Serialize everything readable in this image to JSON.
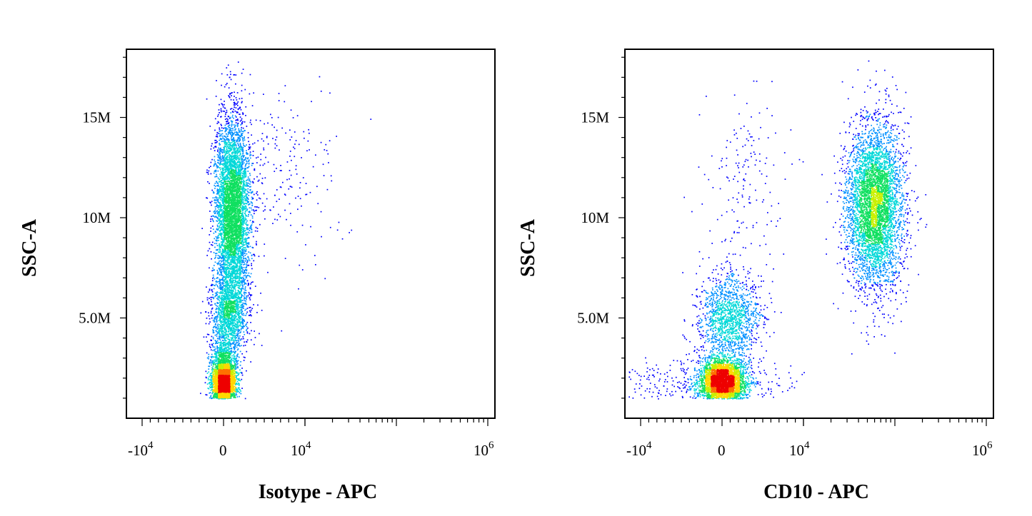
{
  "palette": [
    "#0000ff",
    "#0090ff",
    "#00d8d8",
    "#10e060",
    "#c8f000",
    "#ffd800",
    "#ff7000",
    "#ee0000"
  ],
  "chart_data": [
    {
      "type": "scatter",
      "subtype": "flow-cytometry-density-dot-plot",
      "xlabel": "Isotype - APC",
      "ylabel": "SSC-A",
      "x_scale": "biexponential",
      "x_ticks": [
        {
          "value": -10000,
          "base": "-10",
          "exp": "4"
        },
        {
          "value": 0,
          "base": "0",
          "exp": ""
        },
        {
          "value": 10000,
          "base": "10",
          "exp": "4"
        },
        {
          "value": 1000000,
          "base": "10",
          "exp": "6"
        }
      ],
      "y_ticks": [
        {
          "value": 5000000,
          "label": "5.0M"
        },
        {
          "value": 10000000,
          "label": "10M"
        },
        {
          "value": 15000000,
          "label": "15M"
        }
      ],
      "ylim": [
        0,
        18400000
      ],
      "populations": [
        {
          "x_center": 0,
          "y_center": 1750000,
          "x_spread": 700,
          "y_spread": 550000,
          "count": 3200
        },
        {
          "x_center": 1000,
          "y_center": 10300000,
          "x_spread": 1050,
          "y_spread": 2300000,
          "count": 5200
        },
        {
          "x_center": 500,
          "y_center": 5200000,
          "x_spread": 1100,
          "y_spread": 1000000,
          "count": 1300
        },
        {
          "x_center": 0,
          "y_center": 3000000,
          "x_spread": 900,
          "y_spread": 500000,
          "count": 500
        },
        {
          "x_center": 7000,
          "y_center": 12000000,
          "x_spread": 5000,
          "y_spread": 2400000,
          "count": 240
        }
      ],
      "grid": false,
      "legend": "none"
    },
    {
      "type": "scatter",
      "subtype": "flow-cytometry-density-dot-plot",
      "xlabel": "CD10 - APC",
      "ylabel": "SSC-A",
      "x_scale": "biexponential",
      "x_ticks": [
        {
          "value": -10000,
          "base": "-10",
          "exp": "4"
        },
        {
          "value": 0,
          "base": "0",
          "exp": ""
        },
        {
          "value": 10000,
          "base": "10",
          "exp": "4"
        },
        {
          "value": 1000000,
          "base": "10",
          "exp": "6"
        }
      ],
      "y_ticks": [
        {
          "value": 5000000,
          "label": "5.0M"
        },
        {
          "value": 10000000,
          "label": "10M"
        },
        {
          "value": 15000000,
          "label": "15M"
        }
      ],
      "ylim": [
        0,
        18400000
      ],
      "populations": [
        {
          "x_center": 0,
          "y_center": 1800000,
          "x_spread": 1400,
          "y_spread": 600000,
          "count": 3600
        },
        {
          "x_center": 800,
          "y_center": 5000000,
          "x_spread": 1900,
          "y_spread": 1100000,
          "count": 1400
        },
        {
          "x_center": 60000,
          "y_center": 10600000,
          "x_spread": 25000,
          "y_spread": 2000000,
          "count": 4800
        },
        {
          "x_center": 3000,
          "y_center": 12000000,
          "x_spread": 2500,
          "y_spread": 2200000,
          "count": 160
        },
        {
          "x_center": -3000,
          "y_center": 1800000,
          "x_spread": 5000,
          "y_spread": 600000,
          "count": 400
        }
      ],
      "grid": false,
      "legend": "none"
    }
  ]
}
